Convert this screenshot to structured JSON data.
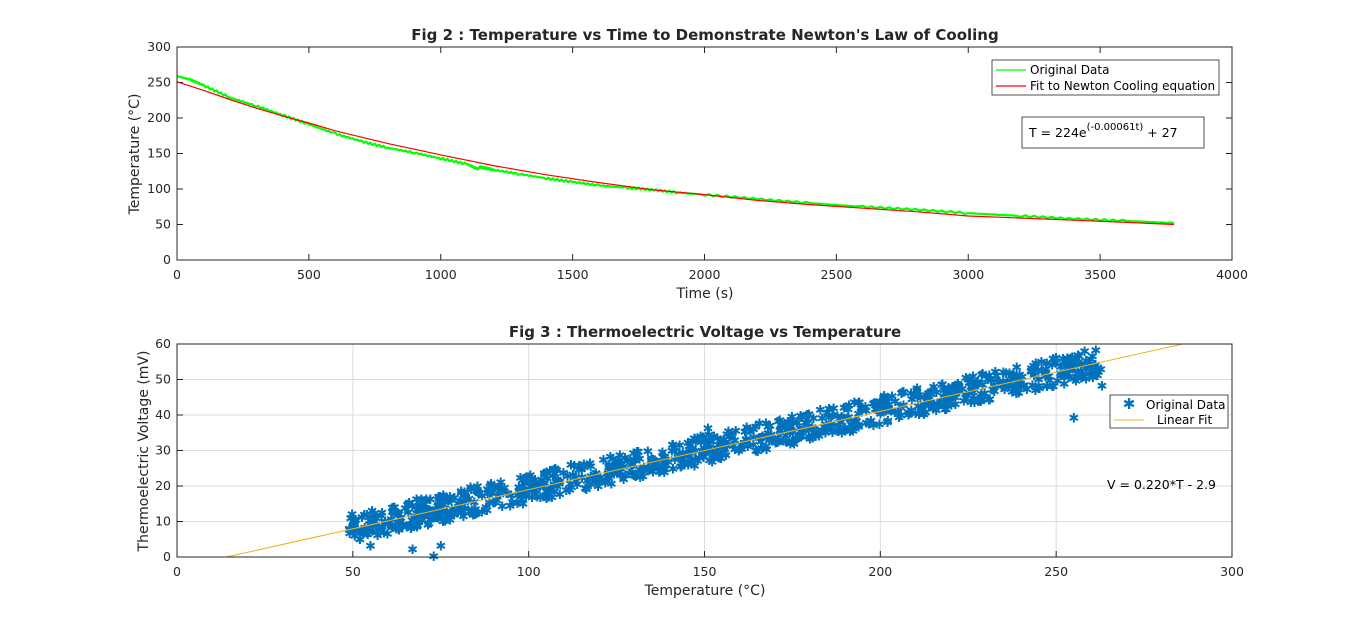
{
  "chart_data": [
    {
      "type": "line",
      "title": "Fig 2 : Temperature vs Time to Demonstrate Newton's Law of Cooling",
      "xlabel": "Time (s)",
      "ylabel": "Temperature (°C)",
      "xlim": [
        0,
        4000
      ],
      "ylim": [
        0,
        300
      ],
      "xticks": [
        0,
        500,
        1000,
        1500,
        2000,
        2500,
        3000,
        3500,
        4000
      ],
      "yticks": [
        0,
        50,
        100,
        150,
        200,
        250,
        300
      ],
      "grid": false,
      "legend_position": "top-right",
      "series": [
        {
          "name": "Original Data",
          "color": "#00ff00",
          "x": [
            0,
            50,
            100,
            200,
            300,
            400,
            500,
            600,
            700,
            800,
            900,
            1000,
            1100,
            1140,
            1150,
            1200,
            1300,
            1400,
            1500,
            1600,
            1700,
            1800,
            1900,
            2000,
            2200,
            2400,
            2600,
            2800,
            3000,
            3200,
            3400,
            3600,
            3780
          ],
          "y": [
            259,
            254,
            246,
            229,
            217,
            204,
            191,
            178,
            167,
            158,
            151,
            143,
            135,
            128,
            131,
            127,
            121,
            115,
            110,
            105,
            102,
            99,
            95,
            92,
            86,
            80,
            75,
            71,
            66,
            62,
            58,
            55,
            52
          ]
        },
        {
          "name": "Fit to Newton Cooling equation",
          "color": "#ff0000",
          "x": [
            0,
            100,
            200,
            300,
            400,
            500,
            600,
            700,
            800,
            900,
            1000,
            1200,
            1400,
            1600,
            1800,
            2000,
            2200,
            2400,
            2600,
            2800,
            3000,
            3200,
            3400,
            3600,
            3780
          ],
          "y": [
            251,
            239,
            226,
            214,
            203,
            193,
            182,
            173,
            164,
            156,
            148,
            133,
            120,
            109,
            99,
            92,
            84,
            78,
            73,
            68,
            62,
            59,
            56,
            53,
            50
          ]
        }
      ],
      "annotation": {
        "prefix": "T = 224e",
        "exponent": "(-0.00061t)",
        "suffix": " + 27"
      }
    },
    {
      "type": "scatter",
      "title": "Fig 3 : Thermoelectric Voltage vs Temperature",
      "xlabel": "Temperature (°C)",
      "ylabel": "Thermoelectric Voltage (mV)",
      "xlim": [
        0,
        300
      ],
      "ylim": [
        0,
        60
      ],
      "xticks": [
        0,
        50,
        100,
        150,
        200,
        250,
        300
      ],
      "yticks": [
        0,
        10,
        20,
        30,
        40,
        50,
        60
      ],
      "grid": true,
      "legend_position": "middle-right",
      "scatter_band": {
        "name": "Original Data",
        "color": "#0072bd",
        "x_range": [
          49,
          263
        ],
        "center_slope": 0.22,
        "center_intercept": -2.9,
        "half_width_mV": 4
      },
      "outliers": [
        {
          "x": 73,
          "y": 0
        },
        {
          "x": 67,
          "y": 2
        },
        {
          "x": 55,
          "y": 3
        },
        {
          "x": 75,
          "y": 3
        },
        {
          "x": 151,
          "y": 36
        },
        {
          "x": 255,
          "y": 39
        },
        {
          "x": 263,
          "y": 48
        },
        {
          "x": 262,
          "y": 52
        }
      ],
      "fit": {
        "name": "Linear Fit",
        "color": "#edb120",
        "x": [
          14,
          286
        ],
        "y": [
          0,
          60
        ]
      },
      "annotation": "V = 0.220*T - 2.9"
    }
  ]
}
